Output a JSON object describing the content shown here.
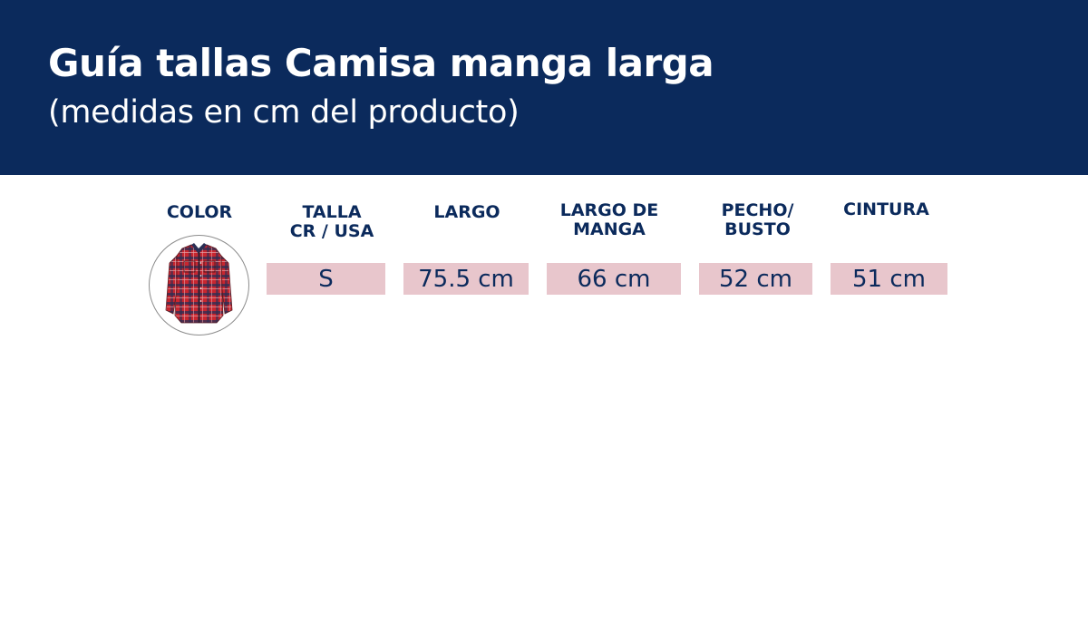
{
  "header": {
    "title": "Guía tallas Camisa manga larga",
    "subtitle": "(medidas en cm del producto)",
    "background_color": "#0b2a5c"
  },
  "table": {
    "headers": {
      "color": "COLOR",
      "talla": "TALLA\nCR / USA",
      "largo": "LARGO",
      "largo_manga": "LARGO DE\nMANGA",
      "pecho": "PECHO/\nBUSTO",
      "cintura": "CINTURA"
    },
    "row": {
      "color_icon": "red-plaid-shirt-icon",
      "talla": "S",
      "largo": "75.5 cm",
      "largo_manga": "66 cm",
      "pecho": "52 cm",
      "cintura": "51 cm"
    },
    "cell_color": "#e8c6cc",
    "text_color": "#0b2a5c"
  }
}
